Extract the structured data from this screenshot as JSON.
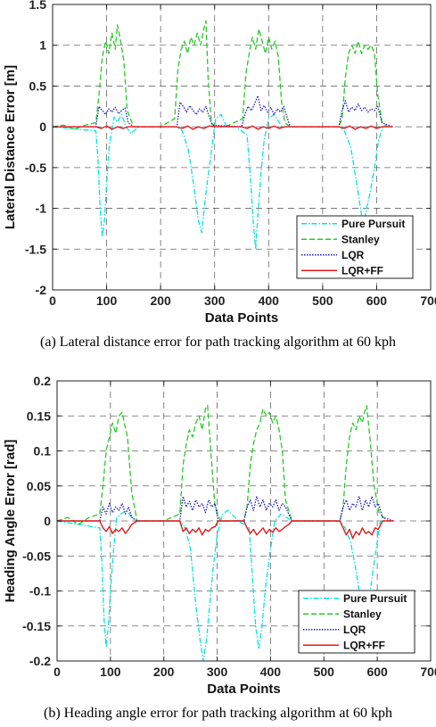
{
  "chart_data": [
    {
      "type": "line",
      "caption": "(a) Lateral distance error for path tracking algorithm at 60 kph",
      "xlabel": "Data Points",
      "ylabel": "Lateral Distance Error [m]",
      "xlim": [
        0,
        700
      ],
      "ylim": [
        -2,
        1.5
      ],
      "xticks": [
        0,
        100,
        200,
        300,
        400,
        500,
        600,
        700
      ],
      "yticks": [
        -2,
        -1.5,
        -1,
        -0.5,
        0,
        0.5,
        1,
        1.5
      ],
      "ytick_labels": [
        "-2",
        "-1.5",
        "-1",
        "-0.5",
        "0",
        "0.5",
        "1",
        "1.5"
      ],
      "grid": true,
      "legend_position": "bottom-right",
      "series": [
        {
          "name": "Pure Pursuit",
          "color": "#00e5e5",
          "style": "dashdot",
          "x": [
            0,
            80,
            84,
            88,
            92,
            96,
            100,
            104,
            108,
            114,
            120,
            128,
            136,
            145,
            160,
            230,
            240,
            252,
            262,
            270,
            276,
            280,
            286,
            294,
            302,
            312,
            322,
            340,
            360,
            366,
            372,
            376,
            380,
            386,
            392,
            400,
            410,
            425,
            440,
            530,
            540,
            552,
            562,
            570,
            575,
            580,
            588,
            596,
            604,
            612,
            630
          ],
          "y": [
            0,
            -0.05,
            -0.4,
            -1.0,
            -1.35,
            -1.15,
            -0.7,
            -0.3,
            -0.1,
            0.12,
            0.06,
            0.15,
            0.0,
            -0.08,
            0,
            0,
            -0.05,
            -0.3,
            -0.75,
            -1.15,
            -1.3,
            -1.05,
            -0.7,
            -0.3,
            0.1,
            0.15,
            0.0,
            0,
            -0.1,
            -0.6,
            -1.2,
            -1.5,
            -1.1,
            -0.55,
            -0.15,
            0.1,
            0.15,
            0.0,
            0,
            0,
            -0.05,
            -0.25,
            -0.65,
            -1.0,
            -1.2,
            -1.05,
            -0.8,
            -0.5,
            -0.15,
            0.0,
            0
          ]
        },
        {
          "name": "Stanley",
          "color": "#22cc22",
          "style": "dashed",
          "x": [
            0,
            20,
            40,
            60,
            80,
            86,
            92,
            98,
            104,
            110,
            116,
            120,
            126,
            132,
            138,
            150,
            200,
            226,
            232,
            238,
            244,
            250,
            256,
            262,
            268,
            274,
            280,
            284,
            288,
            294,
            300,
            320,
            352,
            358,
            364,
            370,
            376,
            382,
            388,
            394,
            400,
            406,
            412,
            418,
            424,
            430,
            440,
            530,
            536,
            542,
            548,
            554,
            560,
            566,
            572,
            578,
            584,
            590,
            596,
            602,
            610,
            620
          ],
          "y": [
            0,
            0.02,
            -0.03,
            0.02,
            0.05,
            0.4,
            0.85,
            1.05,
            0.9,
            1.15,
            0.95,
            1.25,
            1.05,
            0.8,
            0.2,
            0,
            0,
            0.1,
            0.7,
            0.95,
            1.05,
            0.9,
            1.1,
            1.0,
            1.15,
            1.0,
            1.2,
            1.3,
            0.6,
            0.05,
            0,
            0,
            0.1,
            0.65,
            0.9,
            1.1,
            0.95,
            1.2,
            1.05,
            0.9,
            1.1,
            0.95,
            1.05,
            0.85,
            0.3,
            0.05,
            0,
            0,
            0.1,
            0.6,
            0.9,
            1.0,
            0.9,
            1.05,
            0.9,
            1.0,
            0.95,
            1.0,
            0.9,
            0.4,
            0.05,
            0
          ]
        },
        {
          "name": "LQR",
          "color": "#1a1acc",
          "style": "dotted",
          "x": [
            0,
            80,
            86,
            92,
            98,
            104,
            110,
            116,
            122,
            128,
            134,
            140,
            150,
            230,
            236,
            242,
            248,
            254,
            260,
            266,
            272,
            278,
            284,
            290,
            296,
            350,
            356,
            362,
            368,
            374,
            380,
            386,
            392,
            398,
            404,
            410,
            416,
            422,
            428,
            434,
            440,
            530,
            536,
            542,
            548,
            554,
            560,
            566,
            572,
            578,
            584,
            590,
            596,
            602,
            610,
            630
          ],
          "y": [
            0,
            0,
            0.25,
            0.2,
            0.15,
            0.22,
            0.18,
            0.24,
            0.16,
            0.2,
            0.23,
            0.05,
            0,
            0,
            0.3,
            0.25,
            0.18,
            0.26,
            0.2,
            0.15,
            0.22,
            0.18,
            0.25,
            0.12,
            0.02,
            0,
            0.15,
            0.25,
            0.2,
            0.28,
            0.38,
            0.2,
            0.26,
            0.18,
            0.24,
            0.15,
            0.22,
            0.18,
            0.25,
            0.12,
            0.0,
            0,
            0.2,
            0.32,
            0.18,
            0.24,
            0.2,
            0.28,
            0.2,
            0.24,
            0.18,
            0.22,
            0.2,
            0.25,
            0.05,
            0
          ]
        },
        {
          "name": "LQR+FF",
          "color": "#e51919",
          "style": "solid",
          "x": [
            0,
            80,
            90,
            100,
            110,
            120,
            130,
            140,
            230,
            240,
            250,
            260,
            270,
            280,
            290,
            300,
            350,
            360,
            370,
            380,
            390,
            400,
            410,
            420,
            430,
            530,
            540,
            550,
            560,
            570,
            580,
            590,
            600,
            610,
            630
          ],
          "y": [
            0,
            0,
            -0.02,
            0.01,
            -0.03,
            0.0,
            -0.02,
            0,
            0,
            -0.02,
            0.01,
            -0.03,
            0.0,
            -0.02,
            0.01,
            0,
            0,
            -0.02,
            0.01,
            -0.03,
            0.0,
            -0.02,
            0.01,
            -0.02,
            0,
            0,
            -0.02,
            0.01,
            -0.03,
            0.0,
            -0.02,
            0.01,
            -0.02,
            0,
            0
          ]
        }
      ]
    },
    {
      "type": "line",
      "caption": "(b) Heading angle error for path tracking algorithm at 60 kph",
      "xlabel": "Data Points",
      "ylabel": "Heading Angle Error [rad]",
      "xlim": [
        0,
        700
      ],
      "ylim": [
        -0.2,
        0.2
      ],
      "xticks": [
        0,
        100,
        200,
        300,
        400,
        500,
        600,
        700
      ],
      "yticks": [
        -0.2,
        -0.15,
        -0.1,
        -0.05,
        0,
        0.05,
        0.1,
        0.15,
        0.2
      ],
      "ytick_labels": [
        "-0.2",
        "-0.15",
        "-0.1",
        "-0.05",
        "0",
        "0.05",
        "0.1",
        "0.15",
        "0.2"
      ],
      "grid": true,
      "legend_position": "bottom-right",
      "series": [
        {
          "name": "Pure Pursuit",
          "color": "#00e5e5",
          "style": "dashdot",
          "x": [
            0,
            80,
            84,
            88,
            92,
            96,
            100,
            106,
            112,
            120,
            130,
            140,
            150,
            230,
            240,
            250,
            260,
            268,
            274,
            280,
            286,
            292,
            300,
            310,
            320,
            340,
            360,
            366,
            372,
            378,
            384,
            390,
            398,
            408,
            420,
            440,
            530,
            540,
            550,
            560,
            566,
            572,
            578,
            584,
            590,
            598,
            606,
            620
          ],
          "y": [
            0,
            -0.01,
            -0.06,
            -0.14,
            -0.18,
            -0.15,
            -0.1,
            -0.04,
            0.005,
            0.01,
            0.015,
            0.005,
            0,
            0,
            -0.01,
            -0.04,
            -0.12,
            -0.17,
            -0.2,
            -0.17,
            -0.12,
            -0.07,
            -0.02,
            0.01,
            0.015,
            0,
            -0.01,
            -0.08,
            -0.15,
            -0.183,
            -0.15,
            -0.1,
            -0.05,
            0.0,
            0.01,
            0,
            0,
            -0.01,
            -0.03,
            -0.07,
            -0.1,
            -0.13,
            -0.15,
            -0.12,
            -0.08,
            -0.04,
            0.0,
            0
          ]
        },
        {
          "name": "Stanley",
          "color": "#22cc22",
          "style": "dashed",
          "x": [
            0,
            20,
            40,
            60,
            80,
            86,
            92,
            98,
            104,
            110,
            116,
            122,
            126,
            132,
            140,
            150,
            200,
            230,
            236,
            242,
            248,
            254,
            260,
            266,
            272,
            278,
            282,
            288,
            296,
            306,
            350,
            356,
            362,
            368,
            374,
            380,
            386,
            392,
            398,
            404,
            410,
            416,
            422,
            428,
            440,
            530,
            536,
            542,
            548,
            554,
            560,
            566,
            572,
            576,
            580,
            586,
            594,
            604,
            620
          ],
          "y": [
            0,
            0.005,
            -0.005,
            0.005,
            0.01,
            0.05,
            0.1,
            0.12,
            0.14,
            0.125,
            0.15,
            0.155,
            0.14,
            0.12,
            0.04,
            0,
            0,
            0.01,
            0.08,
            0.11,
            0.13,
            0.12,
            0.14,
            0.15,
            0.13,
            0.16,
            0.165,
            0.1,
            0.02,
            0.0,
            0,
            0.02,
            0.08,
            0.11,
            0.13,
            0.14,
            0.16,
            0.15,
            0.155,
            0.14,
            0.15,
            0.13,
            0.1,
            0.03,
            0.0,
            0,
            0.02,
            0.08,
            0.12,
            0.14,
            0.13,
            0.15,
            0.14,
            0.155,
            0.165,
            0.12,
            0.05,
            0.01,
            0
          ]
        },
        {
          "name": "LQR",
          "color": "#1a1acc",
          "style": "dotted",
          "x": [
            0,
            80,
            86,
            92,
            98,
            104,
            110,
            116,
            122,
            128,
            134,
            140,
            150,
            230,
            236,
            242,
            248,
            254,
            260,
            266,
            272,
            278,
            284,
            290,
            296,
            302,
            350,
            356,
            362,
            368,
            374,
            380,
            386,
            392,
            398,
            404,
            410,
            416,
            422,
            428,
            434,
            440,
            530,
            536,
            542,
            548,
            554,
            560,
            566,
            572,
            578,
            584,
            590,
            596,
            602,
            610,
            630
          ],
          "y": [
            0,
            0,
            0.02,
            0.01,
            0.025,
            0.012,
            0.02,
            0.015,
            0.025,
            0.01,
            0.02,
            0.005,
            0,
            0,
            0.035,
            0.02,
            0.028,
            0.015,
            0.03,
            0.02,
            0.025,
            0.012,
            0.03,
            0.02,
            0.025,
            0.0,
            0,
            0.02,
            0.03,
            0.015,
            0.035,
            0.02,
            0.03,
            0.015,
            0.025,
            0.02,
            0.03,
            0.015,
            0.025,
            0.02,
            0.01,
            0.0,
            0,
            0.02,
            0.03,
            0.015,
            0.025,
            0.02,
            0.035,
            0.015,
            0.03,
            0.02,
            0.035,
            0.02,
            0.025,
            0.005,
            0
          ]
        },
        {
          "name": "LQR+FF",
          "color": "#e51919",
          "style": "solid",
          "x": [
            0,
            80,
            86,
            92,
            98,
            104,
            110,
            116,
            122,
            128,
            134,
            140,
            150,
            230,
            236,
            242,
            248,
            254,
            260,
            266,
            272,
            278,
            284,
            290,
            296,
            302,
            350,
            356,
            362,
            368,
            374,
            380,
            386,
            392,
            398,
            404,
            410,
            416,
            422,
            428,
            434,
            440,
            530,
            536,
            542,
            548,
            554,
            560,
            566,
            572,
            578,
            584,
            590,
            596,
            602,
            610,
            630
          ],
          "y": [
            0,
            0,
            -0.01,
            -0.015,
            -0.008,
            -0.018,
            -0.012,
            -0.015,
            -0.01,
            -0.018,
            -0.012,
            -0.005,
            0,
            0,
            -0.015,
            -0.01,
            -0.018,
            -0.012,
            -0.016,
            -0.01,
            -0.02,
            -0.012,
            -0.015,
            -0.01,
            -0.008,
            0.0,
            0,
            -0.01,
            -0.018,
            -0.012,
            -0.02,
            -0.015,
            -0.01,
            -0.018,
            -0.012,
            -0.016,
            -0.01,
            -0.015,
            -0.012,
            -0.008,
            -0.005,
            0.0,
            0,
            -0.01,
            -0.02,
            -0.012,
            -0.025,
            -0.015,
            -0.02,
            -0.01,
            -0.018,
            -0.015,
            -0.02,
            -0.01,
            -0.012,
            0.0,
            0
          ]
        }
      ]
    }
  ]
}
